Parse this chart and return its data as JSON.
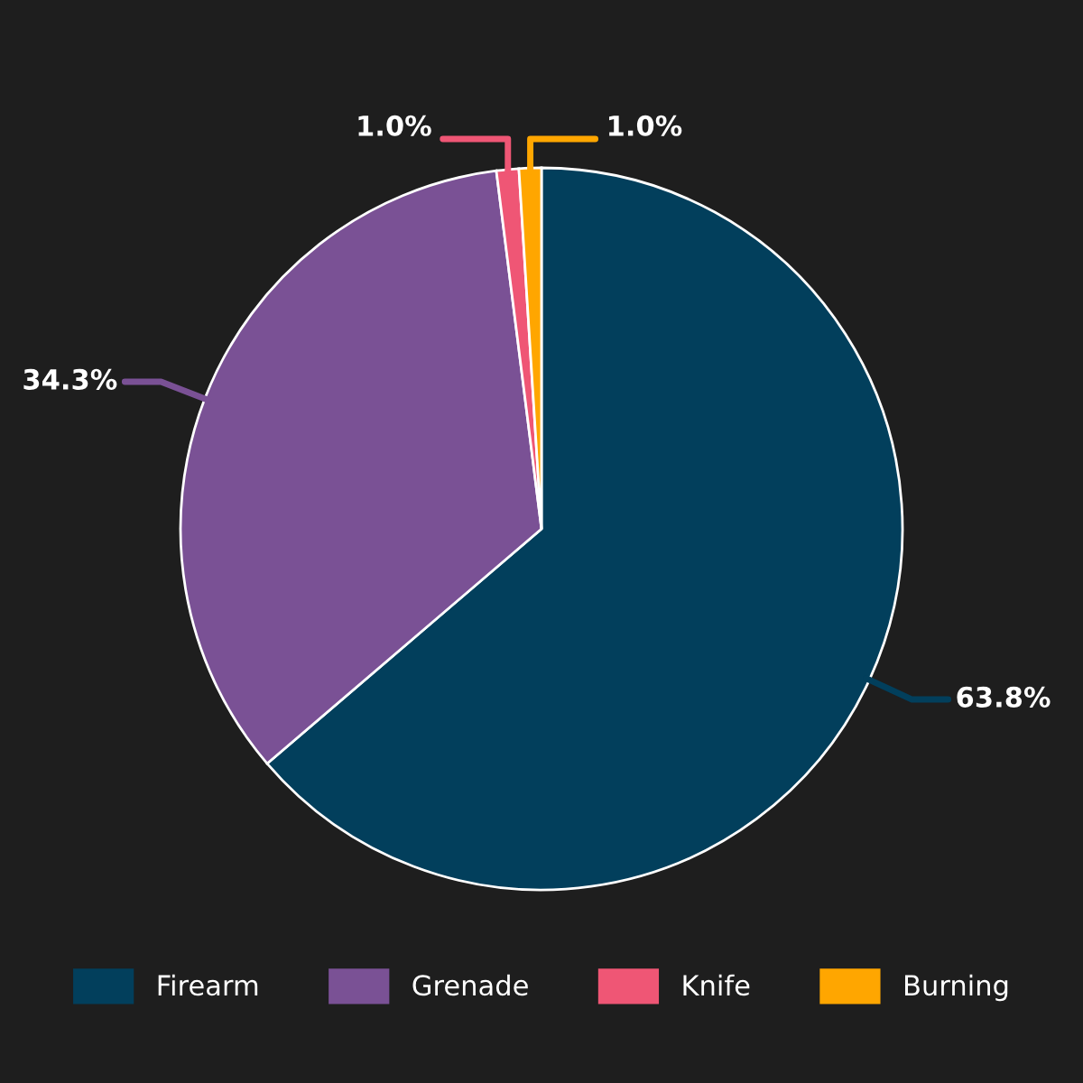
{
  "chart_data": {
    "type": "pie",
    "categories": [
      "Firearm",
      "Grenade",
      "Knife",
      "Burning"
    ],
    "values": [
      63.8,
      34.3,
      1.0,
      1.0
    ],
    "colors": [
      "#023f5c",
      "#7a5195",
      "#ef5675",
      "#ffa600"
    ],
    "value_labels": [
      "63.8%",
      "34.3%",
      "1.0%",
      "1.0%"
    ],
    "legend": "bottom"
  }
}
